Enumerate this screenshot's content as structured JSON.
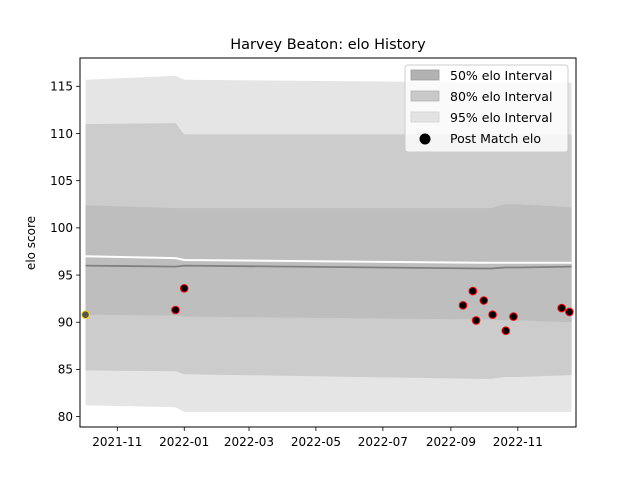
{
  "chart_data": {
    "type": "line",
    "title": "Harvey Beaton: elo History",
    "xlabel": "",
    "ylabel": "elo score",
    "x_tick_labels": [
      "2021-11",
      "2022-01",
      "2022-03",
      "2022-05",
      "2022-07",
      "2022-09",
      "2022-11"
    ],
    "x_ticks": [
      "2021-11-01",
      "2022-01-01",
      "2022-03-01",
      "2022-05-01",
      "2022-07-01",
      "2022-09-01",
      "2022-11-01"
    ],
    "xlim": [
      "2021-09-28",
      "2022-12-24"
    ],
    "ylim": [
      78.9,
      118.0
    ],
    "y_ticks": [
      80,
      85,
      90,
      95,
      100,
      105,
      110,
      115
    ],
    "y_tick_labels": [
      "80",
      "85",
      "90",
      "95",
      "100",
      "105",
      "110",
      "115"
    ],
    "grid": false,
    "legend_position": "top-right",
    "legend": [
      "50% elo Interval",
      "80% elo Interval",
      "95% elo Interval",
      "Post Match elo"
    ],
    "band_dates": [
      "2021-10-03",
      "2021-12-24",
      "2022-01-01",
      "2022-09-30",
      "2022-10-08",
      "2022-10-20",
      "2022-11-01",
      "2022-12-20"
    ],
    "bands": [
      {
        "name": "95% elo Interval",
        "color": "#e5e5e5",
        "upper": [
          115.7,
          116.1,
          115.7,
          115.4,
          115.4,
          115.4,
          115.4,
          115.4
        ],
        "lower": [
          81.2,
          81.0,
          80.5,
          80.5,
          80.5,
          80.5,
          80.5,
          80.5
        ]
      },
      {
        "name": "80% elo Interval",
        "color": "#cccccc",
        "upper": [
          111.0,
          111.1,
          109.9,
          109.9,
          109.9,
          109.9,
          109.9,
          109.9
        ],
        "lower": [
          84.9,
          84.8,
          84.5,
          84.0,
          84.0,
          84.2,
          84.2,
          84.4
        ]
      },
      {
        "name": "50% elo Interval",
        "color": "#bebebe",
        "upper": [
          102.4,
          102.1,
          102.1,
          102.1,
          102.1,
          102.5,
          102.5,
          102.2
        ],
        "lower": [
          90.8,
          90.7,
          90.6,
          90.3,
          90.3,
          90.2,
          90.2,
          90.0
        ]
      }
    ],
    "mean_line": {
      "color": "#808080",
      "values": [
        96.0,
        95.9,
        96.0,
        95.7,
        95.7,
        95.8,
        95.8,
        95.9
      ]
    },
    "upper_line": {
      "color": "#ffffff",
      "values": [
        97.0,
        96.8,
        96.6,
        96.3,
        96.3,
        96.3,
        96.3,
        96.3
      ]
    },
    "points": {
      "name": "Post Match elo",
      "edge_color": "#ff0000",
      "fill_color": "#000000",
      "first_edge_color": "#ffd700",
      "first_fill_color": "#555555",
      "x": [
        "2021-10-03",
        "2021-12-24",
        "2022-01-01",
        "2022-09-12",
        "2022-09-21",
        "2022-09-24",
        "2022-10-01",
        "2022-10-09",
        "2022-10-21",
        "2022-10-28",
        "2022-12-11",
        "2022-12-18"
      ],
      "y": [
        90.8,
        91.3,
        93.6,
        91.8,
        93.3,
        90.2,
        92.3,
        90.8,
        89.1,
        90.6,
        91.5,
        91.1
      ]
    }
  }
}
